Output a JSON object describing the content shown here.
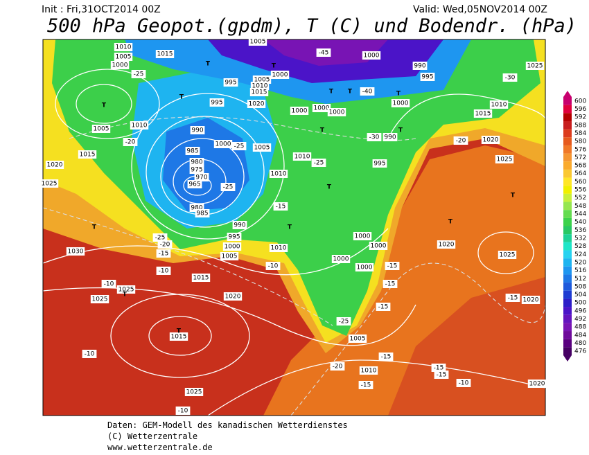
{
  "header": {
    "init": "Init : Fri,31OCT2014 00Z",
    "valid": "Valid: Wed,05NOV2014 00Z",
    "title": "500 hPa Geopot.(gpdm), T (C) und Bodendr. (hPa)"
  },
  "scale": {
    "values": [
      600,
      596,
      592,
      588,
      584,
      580,
      576,
      572,
      568,
      564,
      560,
      556,
      552,
      548,
      544,
      540,
      536,
      532,
      528,
      524,
      520,
      516,
      512,
      508,
      504,
      500,
      496,
      492,
      488,
      484,
      480,
      476
    ],
    "colors": [
      "#c8006e",
      "#e0003c",
      "#b40000",
      "#c81e1e",
      "#dc3c1e",
      "#e65a1e",
      "#f07828",
      "#f59632",
      "#faaa2d",
      "#fac832",
      "#ffe628",
      "#f0f000",
      "#c8f03c",
      "#96e650",
      "#64dc50",
      "#3cd24b",
      "#28c864",
      "#1ed296",
      "#1ee6c8",
      "#28d2f0",
      "#1eb4f0",
      "#1e96f0",
      "#1e78e6",
      "#1e5adc",
      "#1e3cd2",
      "#2d1ec8",
      "#4b14c8",
      "#6414be",
      "#7814b4",
      "#6e0a9b",
      "#5a0080",
      "#460064"
    ]
  },
  "map": {
    "labels": [
      "1010",
      "1005",
      "1000",
      "1015",
      "1005",
      "1000",
      "990",
      "995",
      "1025",
      "-25",
      "-30",
      "-45",
      "995",
      "1005",
      "1000",
      "1010",
      "1015",
      "1020",
      "995",
      "1000",
      "1000",
      "1000",
      "1000",
      "1015",
      "1010",
      "-40",
      "990",
      "985",
      "980",
      "975",
      "970",
      "965",
      "980",
      "985",
      "1005",
      "1010",
      "-20",
      "1015",
      "1020",
      "1025",
      "1000",
      "-25",
      "1005",
      "1010",
      "1010",
      "-25",
      "995",
      "990",
      "-30",
      "-20",
      "1020",
      "1025",
      "-25",
      "990",
      "995",
      "1000",
      "1005",
      "1010",
      "-15",
      "-25",
      "-20",
      "-15",
      "-10",
      "1015",
      "-10",
      "1020",
      "1030",
      "1025",
      "-10",
      "1025",
      "1015",
      "-10",
      "1025",
      "-10",
      "1000",
      "1000",
      "1000",
      "1000",
      "-15",
      "-15",
      "-15",
      "-25",
      "1005",
      "-20",
      "1010",
      "-15",
      "-15",
      "1020",
      "1025",
      "-15",
      "1020",
      "-15",
      "-15",
      "-10",
      "1020",
      "T",
      "T",
      "T",
      "T",
      "T",
      "T",
      "T",
      "T",
      "T",
      "T",
      "T",
      "T",
      "T",
      "T",
      "T",
      "T"
    ]
  },
  "footer": {
    "line1": "Daten: GEM-Modell des kanadischen Wetterdienstes",
    "line2": "(C) Wetterzentrale",
    "line3": "www.wetterzentrale.de"
  }
}
